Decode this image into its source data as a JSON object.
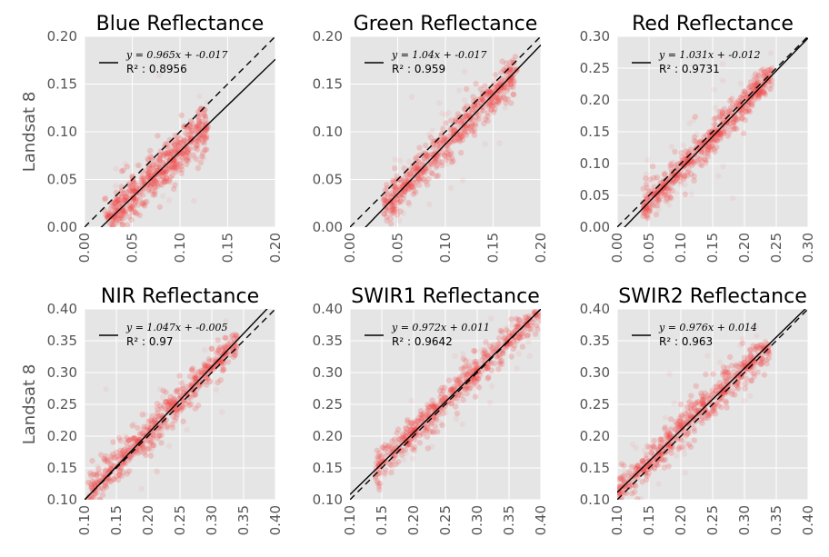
{
  "figure": {
    "ylabel": "Landsat 8"
  },
  "chart_data": [
    {
      "type": "scatter",
      "title": "Blue Reflectance",
      "ylabel": "Landsat 8",
      "xlim": [
        0.0,
        0.2
      ],
      "ylim": [
        0.0,
        0.2
      ],
      "xticks": [
        "0.00",
        "0.05",
        "0.10",
        "0.15",
        "0.20"
      ],
      "yticks": [
        "0.00",
        "0.05",
        "0.10",
        "0.15",
        "0.20"
      ],
      "grid": true,
      "legend_position": "top-left",
      "legend": {
        "equation": "y = 0.965x + -0.017",
        "r2_label": "R² : 0.8956"
      },
      "fit": {
        "slope": 0.965,
        "intercept": -0.017
      },
      "identity_line": true,
      "cloud": {
        "x_min": 0.02,
        "x_max": 0.13,
        "spread": 0.012,
        "y_max": 0.125
      }
    },
    {
      "type": "scatter",
      "title": "Green Reflectance",
      "ylabel": "",
      "xlim": [
        0.0,
        0.2
      ],
      "ylim": [
        0.0,
        0.2
      ],
      "xticks": [
        "0.00",
        "0.05",
        "0.10",
        "0.15",
        "0.20"
      ],
      "yticks": [
        "0.00",
        "0.05",
        "0.10",
        "0.15",
        "0.20"
      ],
      "grid": true,
      "legend_position": "top-left",
      "legend": {
        "equation": "y = 1.04x + -0.017",
        "r2_label": "R² : 0.959"
      },
      "fit": {
        "slope": 1.04,
        "intercept": -0.017
      },
      "identity_line": true,
      "cloud": {
        "x_min": 0.035,
        "x_max": 0.175,
        "spread": 0.011,
        "y_max": 0.18
      }
    },
    {
      "type": "scatter",
      "title": "Red Reflectance",
      "ylabel": "",
      "xlim": [
        0.0,
        0.3
      ],
      "ylim": [
        0.0,
        0.3
      ],
      "xticks": [
        "0.00",
        "0.05",
        "0.10",
        "0.15",
        "0.20",
        "0.25",
        "0.30"
      ],
      "yticks": [
        "0.00",
        "0.05",
        "0.10",
        "0.15",
        "0.20",
        "0.25",
        "0.30"
      ],
      "grid": true,
      "legend_position": "top-left",
      "legend": {
        "equation": "y = 1.031x + -0.012",
        "r2_label": "R² : 0.9731"
      },
      "fit": {
        "slope": 1.031,
        "intercept": -0.012
      },
      "identity_line": true,
      "cloud": {
        "x_min": 0.04,
        "x_max": 0.245,
        "spread": 0.013,
        "y_max": 0.25
      }
    },
    {
      "type": "scatter",
      "title": "NIR Reflectance",
      "ylabel": "Landsat 8",
      "xlim": [
        0.1,
        0.4
      ],
      "ylim": [
        0.1,
        0.4
      ],
      "xticks": [
        "0.10",
        "0.15",
        "0.20",
        "0.25",
        "0.30",
        "0.35",
        "0.40"
      ],
      "yticks": [
        "0.10",
        "0.15",
        "0.20",
        "0.25",
        "0.30",
        "0.35",
        "0.40"
      ],
      "grid": true,
      "legend_position": "top-left",
      "legend": {
        "equation": "y = 1.047x + -0.005",
        "r2_label": "R² : 0.97"
      },
      "fit": {
        "slope": 1.047,
        "intercept": -0.005
      },
      "identity_line": true,
      "cloud": {
        "x_min": 0.105,
        "x_max": 0.34,
        "spread": 0.014,
        "y_max": 0.36
      }
    },
    {
      "type": "scatter",
      "title": "SWIR1 Reflectance",
      "ylabel": "",
      "xlim": [
        0.1,
        0.4
      ],
      "ylim": [
        0.1,
        0.4
      ],
      "xticks": [
        "0.10",
        "0.15",
        "0.20",
        "0.25",
        "0.30",
        "0.35",
        "0.40"
      ],
      "yticks": [
        "0.10",
        "0.15",
        "0.20",
        "0.25",
        "0.30",
        "0.35",
        "0.40"
      ],
      "grid": true,
      "legend_position": "top-left",
      "legend": {
        "equation": "y = 0.972x + 0.011",
        "r2_label": "R² : 0.9642"
      },
      "fit": {
        "slope": 0.972,
        "intercept": 0.011
      },
      "identity_line": true,
      "cloud": {
        "x_min": 0.14,
        "x_max": 0.4,
        "spread": 0.013,
        "y_max": 0.4
      }
    },
    {
      "type": "scatter",
      "title": "SWIR2 Reflectance",
      "ylabel": "",
      "xlim": [
        0.1,
        0.4
      ],
      "ylim": [
        0.1,
        0.4
      ],
      "xticks": [
        "0.10",
        "0.15",
        "0.20",
        "0.25",
        "0.30",
        "0.35",
        "0.40"
      ],
      "yticks": [
        "0.10",
        "0.15",
        "0.20",
        "0.25",
        "0.30",
        "0.35",
        "0.40"
      ],
      "grid": true,
      "legend_position": "top-left",
      "legend": {
        "equation": "y = 0.976x + 0.014",
        "r2_label": "R² : 0.963"
      },
      "fit": {
        "slope": 0.976,
        "intercept": 0.014
      },
      "identity_line": true,
      "cloud": {
        "x_min": 0.1,
        "x_max": 0.34,
        "spread": 0.014,
        "y_max": 0.35
      }
    }
  ],
  "colors": {
    "axes_background": "#e5e5e5",
    "grid": "#ffffff",
    "points": "#f04a4a",
    "fit_line": "#000000",
    "identity_line": "#000000",
    "tick_text": "#555555"
  }
}
